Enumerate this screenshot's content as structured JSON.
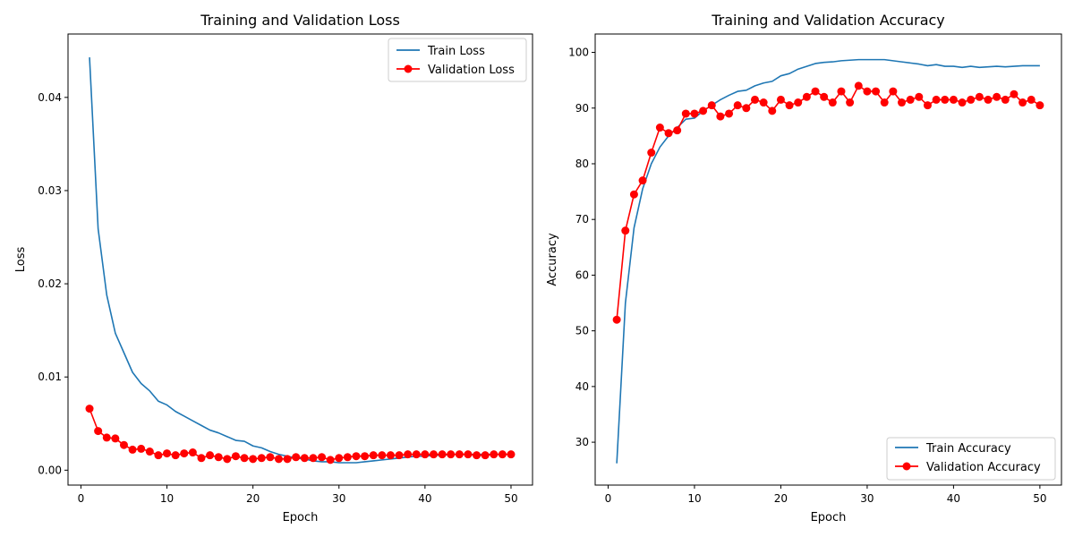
{
  "chart_data": [
    {
      "type": "line",
      "title": "Training and Validation Loss",
      "xlabel": "Epoch",
      "ylabel": "Loss",
      "xlim": [
        -1.5,
        52.5
      ],
      "ylim": [
        -0.0016,
        0.0468
      ],
      "xticks": [
        0,
        10,
        20,
        30,
        40,
        50
      ],
      "xtick_labels": [
        "0",
        "10",
        "20",
        "30",
        "40",
        "50"
      ],
      "yticks": [
        0,
        0.01,
        0.02,
        0.03,
        0.04
      ],
      "ytick_labels": [
        "0.00",
        "0.01",
        "0.02",
        "0.03",
        "0.04"
      ],
      "legend_position": "upper right",
      "x": [
        1,
        2,
        3,
        4,
        5,
        6,
        7,
        8,
        9,
        10,
        11,
        12,
        13,
        14,
        15,
        16,
        17,
        18,
        19,
        20,
        21,
        22,
        23,
        24,
        25,
        26,
        27,
        28,
        29,
        30,
        31,
        32,
        33,
        34,
        35,
        36,
        37,
        38,
        39,
        40,
        41,
        42,
        43,
        44,
        45,
        46,
        47,
        48,
        49,
        50
      ],
      "series": [
        {
          "name": "Train Loss",
          "color": "#1f77b4",
          "marker": "none",
          "values": [
            0.0443,
            0.0259,
            0.0188,
            0.0147,
            0.0126,
            0.0105,
            0.0093,
            0.0085,
            0.0074,
            0.007,
            0.0063,
            0.0058,
            0.0053,
            0.0048,
            0.0043,
            0.004,
            0.0036,
            0.0032,
            0.0031,
            0.0026,
            0.0024,
            0.002,
            0.0017,
            0.0015,
            0.0013,
            0.0012,
            0.001,
            0.0009,
            0.0009,
            0.0008,
            0.0008,
            0.0008,
            0.0009,
            0.001,
            0.0011,
            0.0012,
            0.0013,
            0.0014,
            0.0015,
            0.0015,
            0.0016,
            0.0016,
            0.0017,
            0.0017,
            0.0017,
            0.0017,
            0.0017,
            0.0017,
            0.0017,
            0.0017
          ]
        },
        {
          "name": "Validation Loss",
          "color": "#ff0000",
          "marker": "circle",
          "values": [
            0.0066,
            0.0042,
            0.0035,
            0.0034,
            0.0027,
            0.0022,
            0.0023,
            0.002,
            0.0016,
            0.0018,
            0.0016,
            0.0018,
            0.0019,
            0.0013,
            0.0016,
            0.0014,
            0.0012,
            0.0015,
            0.0013,
            0.0012,
            0.0013,
            0.0014,
            0.0012,
            0.0012,
            0.0014,
            0.0013,
            0.0013,
            0.0014,
            0.0011,
            0.0013,
            0.0014,
            0.0015,
            0.0015,
            0.0016,
            0.0016,
            0.0016,
            0.0016,
            0.0017,
            0.0017,
            0.0017,
            0.0017,
            0.0017,
            0.0017,
            0.0017,
            0.0017,
            0.0016,
            0.0016,
            0.0017,
            0.0017,
            0.0017
          ]
        }
      ]
    },
    {
      "type": "line",
      "title": "Training and Validation Accuracy",
      "xlabel": "Epoch",
      "ylabel": "Accuracy",
      "xlim": [
        -1.5,
        52.5
      ],
      "ylim": [
        22.3,
        103.3
      ],
      "xticks": [
        0,
        10,
        20,
        30,
        40,
        50
      ],
      "xtick_labels": [
        "0",
        "10",
        "20",
        "30",
        "40",
        "50"
      ],
      "yticks": [
        30,
        40,
        50,
        60,
        70,
        80,
        90,
        100
      ],
      "ytick_labels": [
        "30",
        "40",
        "50",
        "60",
        "70",
        "80",
        "90",
        "100"
      ],
      "legend_position": "lower right",
      "x": [
        1,
        2,
        3,
        4,
        5,
        6,
        7,
        8,
        9,
        10,
        11,
        12,
        13,
        14,
        15,
        16,
        17,
        18,
        19,
        20,
        21,
        22,
        23,
        24,
        25,
        26,
        27,
        28,
        29,
        30,
        31,
        32,
        33,
        34,
        35,
        36,
        37,
        38,
        39,
        40,
        41,
        42,
        43,
        44,
        45,
        46,
        47,
        48,
        49,
        50
      ],
      "series": [
        {
          "name": "Train Accuracy",
          "color": "#1f77b4",
          "marker": "none",
          "values": [
            26.2,
            55,
            68.5,
            75.5,
            80,
            83,
            85,
            86.5,
            88,
            88.2,
            89.5,
            90.5,
            91.5,
            92.3,
            93,
            93.2,
            94,
            94.5,
            94.8,
            95.8,
            96.2,
            97,
            97.5,
            98,
            98.2,
            98.3,
            98.5,
            98.6,
            98.7,
            98.7,
            98.7,
            98.7,
            98.5,
            98.3,
            98.1,
            97.9,
            97.6,
            97.8,
            97.5,
            97.5,
            97.3,
            97.5,
            97.3,
            97.4,
            97.5,
            97.4,
            97.5,
            97.6,
            97.6,
            97.6
          ]
        },
        {
          "name": "Validation Accuracy",
          "color": "#ff0000",
          "marker": "circle",
          "values": [
            52,
            68,
            74.5,
            77,
            82,
            86.5,
            85.5,
            86,
            89,
            89,
            89.5,
            90.5,
            88.5,
            89,
            90.5,
            90,
            91.5,
            91,
            89.5,
            91.5,
            90.5,
            91,
            92,
            93,
            92,
            91,
            93,
            91,
            94,
            93,
            93,
            91,
            93,
            91,
            91.5,
            92,
            90.5,
            91.5,
            91.5,
            91.5,
            91,
            91.5,
            92,
            91.5,
            92,
            91.5,
            92.5,
            91,
            91.5,
            90.5
          ]
        }
      ]
    }
  ]
}
